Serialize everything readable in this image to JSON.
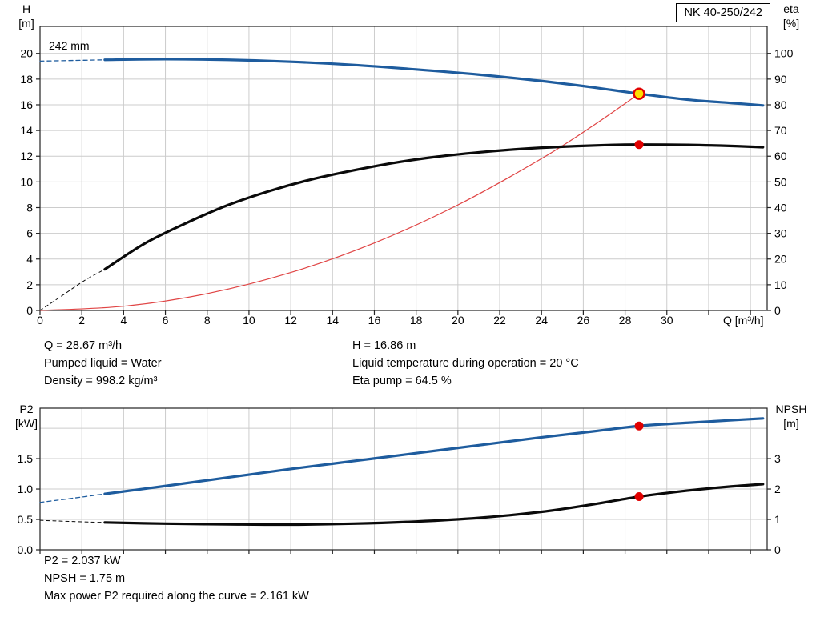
{
  "model_box": {
    "label": "NK 40-250/242"
  },
  "info_top": {
    "left": [
      "Q = 28.67 m³/h",
      "Pumped liquid = Water",
      "Density = 998.2 kg/m³"
    ],
    "right": [
      "H = 16.86 m",
      "Liquid temperature during operation = 20 °C",
      "Eta pump = 64.5 %"
    ]
  },
  "info_bottom": [
    "P2 = 2.037 kW",
    "NPSH = 1.75 m",
    "Max power P2 required along the curve = 2.161 kW"
  ],
  "colors": {
    "curve_blue": "#1e5c9e",
    "curve_black": "#0a0a0a",
    "system_red": "#e04545",
    "marker_red": "#e10000",
    "duty_yellow": "#ffdf00",
    "grid": "#cccccc",
    "frame": "#222222"
  },
  "chart_data": [
    {
      "id": "top",
      "type": "line",
      "title": "QH and efficiency curves",
      "impeller_label": "242 mm",
      "x": {
        "label": "Q [m³/h]",
        "min": 0,
        "max": 34.8,
        "tick_step": 2,
        "label_max": 30,
        "grid_max": 34,
        "show_labels": true
      },
      "left": {
        "header": [
          "H",
          "[m]"
        ],
        "min": 0,
        "max": 22.1,
        "tick_step": 2,
        "label_max": 20,
        "grid_step": 2,
        "grid_max": 20,
        "decimals": 0
      },
      "right": {
        "header": [
          "eta",
          "[%]"
        ],
        "min": 0,
        "max": 110.5,
        "tick_step": 10,
        "label_max": 100,
        "decimals": 0
      },
      "series": [
        {
          "name": "system-curve",
          "axis": "left",
          "color": "#e04545",
          "width": 1.2,
          "points": [
            [
              0,
              0
            ],
            [
              4,
              0.33
            ],
            [
              8,
              1.31
            ],
            [
              12,
              2.95
            ],
            [
              16,
              5.25
            ],
            [
              20,
              8.21
            ],
            [
              24,
              11.81
            ],
            [
              26.5,
              14.41
            ],
            [
              28.67,
              16.86
            ]
          ]
        },
        {
          "name": "head-curve-dashed",
          "axis": "left",
          "color": "#1e5c9e",
          "width": 1.3,
          "dash": "5 4",
          "points": [
            [
              0,
              19.4
            ],
            [
              1.6,
              19.45
            ],
            [
              3.1,
              19.5
            ]
          ]
        },
        {
          "name": "head-curve",
          "axis": "left",
          "color": "#1e5c9e",
          "width": 3.2,
          "points": [
            [
              3.1,
              19.5
            ],
            [
              6,
              19.55
            ],
            [
              9,
              19.5
            ],
            [
              12,
              19.35
            ],
            [
              15,
              19.1
            ],
            [
              18,
              18.75
            ],
            [
              21,
              18.35
            ],
            [
              24,
              17.85
            ],
            [
              26.5,
              17.35
            ],
            [
              28.67,
              16.86
            ],
            [
              31,
              16.4
            ],
            [
              33,
              16.15
            ],
            [
              34.6,
              15.95
            ]
          ]
        },
        {
          "name": "efficiency-curve-dashed",
          "axis": "right",
          "color": "#0a0a0a",
          "width": 1,
          "dash": "4 4",
          "points": [
            [
              0,
              0
            ],
            [
              1.1,
              6
            ],
            [
              2.1,
              11.5
            ],
            [
              3.1,
              16
            ]
          ]
        },
        {
          "name": "efficiency-curve",
          "axis": "right",
          "color": "#0a0a0a",
          "width": 3.2,
          "points": [
            [
              3.1,
              16
            ],
            [
              5,
              26
            ],
            [
              7,
              34
            ],
            [
              9,
              41
            ],
            [
              11,
              46.5
            ],
            [
              13,
              51
            ],
            [
              15,
              54.5
            ],
            [
              17,
              57.5
            ],
            [
              19,
              59.8
            ],
            [
              21,
              61.5
            ],
            [
              23,
              62.8
            ],
            [
              25,
              63.7
            ],
            [
              27,
              64.3
            ],
            [
              28.67,
              64.5
            ],
            [
              31,
              64.4
            ],
            [
              33,
              64
            ],
            [
              34.6,
              63.5
            ]
          ]
        }
      ],
      "markers": [
        {
          "name": "efficiency-point-marker",
          "q": 28.67,
          "v": 64.5,
          "axis": "right",
          "r": 5.5,
          "fill": "#e10000"
        },
        {
          "name": "duty-point-marker",
          "q": 28.67,
          "v": 16.86,
          "axis": "left",
          "r": 6.5,
          "fill": "#ffdf00",
          "stroke": "#e10000",
          "stroke_width": 2.4,
          "interactable": true
        }
      ]
    },
    {
      "id": "bottom",
      "type": "line",
      "title": "Power and NPSH curves",
      "x": {
        "min": 0,
        "max": 34.8,
        "tick_step": 2,
        "grid_max": 34,
        "show_labels": false
      },
      "left": {
        "header": [
          "P2",
          "[kW]"
        ],
        "min": 0,
        "max": 2.33,
        "tick_step": 0.5,
        "label_max": 1.5,
        "grid_step": 0.5,
        "grid_max": 2,
        "decimals": 1
      },
      "right": {
        "header": [
          "NPSH",
          "[m]"
        ],
        "min": 0,
        "max": 4.66,
        "tick_step": 1,
        "label_max": 3,
        "decimals": 0
      },
      "series": [
        {
          "name": "p2-curve-dashed",
          "axis": "left",
          "color": "#1e5c9e",
          "width": 1.3,
          "dash": "5 4",
          "points": [
            [
              0,
              0.78
            ],
            [
              1.6,
              0.85
            ],
            [
              3.1,
              0.92
            ]
          ]
        },
        {
          "name": "p2-curve",
          "axis": "left",
          "color": "#1e5c9e",
          "width": 3.2,
          "points": [
            [
              3.1,
              0.92
            ],
            [
              6,
              1.05
            ],
            [
              9,
              1.19
            ],
            [
              12,
              1.33
            ],
            [
              15,
              1.46
            ],
            [
              18,
              1.59
            ],
            [
              21,
              1.72
            ],
            [
              24,
              1.85
            ],
            [
              26.5,
              1.95
            ],
            [
              28.67,
              2.037
            ],
            [
              31,
              2.09
            ],
            [
              33,
              2.13
            ],
            [
              34.6,
              2.161
            ]
          ]
        },
        {
          "name": "npsh-curve-dashed",
          "axis": "right",
          "color": "#0a0a0a",
          "width": 1,
          "dash": "4 4",
          "points": [
            [
              0,
              0.97
            ],
            [
              1.6,
              0.93
            ],
            [
              3.1,
              0.9
            ]
          ]
        },
        {
          "name": "npsh-curve",
          "axis": "right",
          "color": "#0a0a0a",
          "width": 3.2,
          "points": [
            [
              3.1,
              0.9
            ],
            [
              6,
              0.86
            ],
            [
              9,
              0.84
            ],
            [
              12,
              0.83
            ],
            [
              15,
              0.86
            ],
            [
              18,
              0.93
            ],
            [
              21,
              1.05
            ],
            [
              24,
              1.25
            ],
            [
              26.5,
              1.5
            ],
            [
              28.67,
              1.75
            ],
            [
              31,
              1.95
            ],
            [
              33,
              2.08
            ],
            [
              34.6,
              2.16
            ]
          ]
        }
      ],
      "markers": [
        {
          "name": "p2-point-marker",
          "q": 28.67,
          "v": 2.037,
          "axis": "left",
          "r": 5.5,
          "fill": "#e10000"
        },
        {
          "name": "npsh-point-marker",
          "q": 28.67,
          "v": 1.75,
          "axis": "right",
          "r": 5.5,
          "fill": "#e10000"
        }
      ]
    }
  ]
}
